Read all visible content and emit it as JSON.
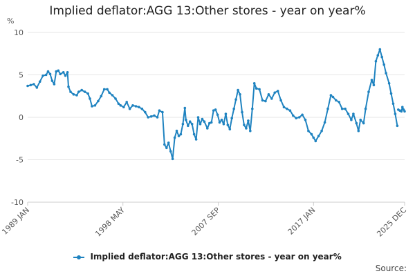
{
  "chart_data": {
    "type": "line",
    "title": "Implied deflator:AGG 13:Other stores - year on year%",
    "ylabel": "%",
    "ylim": [
      -10,
      10
    ],
    "yticks": [
      10,
      5,
      0,
      -5,
      -10
    ],
    "xticks": [
      {
        "label": "1989 JAN",
        "t": 1989.0
      },
      {
        "label": "1998 MAY",
        "t": 1998.33
      },
      {
        "label": "2007 SEP",
        "t": 2007.67
      },
      {
        "label": "2017 JAN",
        "t": 2017.0
      },
      {
        "label": "2025 DEC",
        "t": 2025.92
      }
    ],
    "xrange": [
      1989.0,
      2025.92
    ],
    "grid": true,
    "legend_position": "bottom",
    "series": [
      {
        "name": "Implied deflator:AGG 13:Other stores - year on year%",
        "color": "#1f83c0",
        "points": [
          [
            1989.0,
            3.7
          ],
          [
            1989.3,
            3.8
          ],
          [
            1989.6,
            3.9
          ],
          [
            1989.9,
            3.5
          ],
          [
            1990.2,
            4.2
          ],
          [
            1990.5,
            4.9
          ],
          [
            1990.8,
            5.0
          ],
          [
            1991.0,
            5.4
          ],
          [
            1991.2,
            5.1
          ],
          [
            1991.4,
            4.3
          ],
          [
            1991.6,
            3.9
          ],
          [
            1991.8,
            5.4
          ],
          [
            1992.0,
            5.5
          ],
          [
            1992.2,
            5.1
          ],
          [
            1992.5,
            5.3
          ],
          [
            1992.7,
            4.9
          ],
          [
            1992.9,
            5.3
          ],
          [
            1993.0,
            3.6
          ],
          [
            1993.2,
            3.0
          ],
          [
            1993.5,
            2.7
          ],
          [
            1993.8,
            2.6
          ],
          [
            1994.0,
            3.0
          ],
          [
            1994.3,
            3.2
          ],
          [
            1994.6,
            3.0
          ],
          [
            1994.9,
            2.8
          ],
          [
            1995.1,
            2.2
          ],
          [
            1995.3,
            1.3
          ],
          [
            1995.6,
            1.4
          ],
          [
            1995.9,
            1.9
          ],
          [
            1996.2,
            2.5
          ],
          [
            1996.5,
            3.3
          ],
          [
            1996.8,
            3.3
          ],
          [
            1997.0,
            2.9
          ],
          [
            1997.3,
            2.6
          ],
          [
            1997.6,
            2.2
          ],
          [
            1997.9,
            1.6
          ],
          [
            1998.1,
            1.4
          ],
          [
            1998.4,
            1.2
          ],
          [
            1998.7,
            1.8
          ],
          [
            1999.0,
            1.0
          ],
          [
            1999.3,
            1.4
          ],
          [
            1999.6,
            1.3
          ],
          [
            1999.9,
            1.2
          ],
          [
            2000.2,
            1.0
          ],
          [
            2000.5,
            0.6
          ],
          [
            2000.8,
            0.0
          ],
          [
            2001.1,
            0.1
          ],
          [
            2001.4,
            0.2
          ],
          [
            2001.7,
            0.0
          ],
          [
            2001.9,
            0.8
          ],
          [
            2002.2,
            0.6
          ],
          [
            2002.4,
            -3.2
          ],
          [
            2002.6,
            -3.6
          ],
          [
            2002.8,
            -3.0
          ],
          [
            2003.0,
            -4.0
          ],
          [
            2003.2,
            -4.9
          ],
          [
            2003.4,
            -2.4
          ],
          [
            2003.6,
            -1.6
          ],
          [
            2003.8,
            -2.2
          ],
          [
            2004.0,
            -2.0
          ],
          [
            2004.2,
            -0.8
          ],
          [
            2004.4,
            1.1
          ],
          [
            2004.5,
            -0.3
          ],
          [
            2004.7,
            -1.0
          ],
          [
            2004.9,
            -0.5
          ],
          [
            2005.1,
            -0.8
          ],
          [
            2005.3,
            -2.0
          ],
          [
            2005.5,
            -2.6
          ],
          [
            2005.7,
            0.0
          ],
          [
            2005.9,
            -0.8
          ],
          [
            2006.1,
            -0.2
          ],
          [
            2006.3,
            -0.5
          ],
          [
            2006.6,
            -1.3
          ],
          [
            2006.8,
            -0.7
          ],
          [
            2007.0,
            -0.6
          ],
          [
            2007.2,
            0.8
          ],
          [
            2007.4,
            0.9
          ],
          [
            2007.6,
            0.3
          ],
          [
            2007.8,
            -0.6
          ],
          [
            2008.0,
            -0.3
          ],
          [
            2008.2,
            -0.8
          ],
          [
            2008.4,
            0.4
          ],
          [
            2008.6,
            -0.9
          ],
          [
            2008.8,
            -1.4
          ],
          [
            2009.0,
            -0.1
          ],
          [
            2009.2,
            1.0
          ],
          [
            2009.4,
            2.1
          ],
          [
            2009.6,
            3.2
          ],
          [
            2009.8,
            2.7
          ],
          [
            2010.0,
            0.6
          ],
          [
            2010.2,
            -0.9
          ],
          [
            2010.4,
            -1.3
          ],
          [
            2010.6,
            -0.4
          ],
          [
            2010.8,
            -1.6
          ],
          [
            2011.0,
            1.0
          ],
          [
            2011.2,
            4.0
          ],
          [
            2011.4,
            3.4
          ],
          [
            2011.7,
            3.3
          ],
          [
            2012.0,
            2.0
          ],
          [
            2012.3,
            1.9
          ],
          [
            2012.6,
            2.7
          ],
          [
            2012.9,
            2.2
          ],
          [
            2013.2,
            2.9
          ],
          [
            2013.5,
            3.1
          ],
          [
            2013.8,
            2.0
          ],
          [
            2014.1,
            1.2
          ],
          [
            2014.4,
            1.0
          ],
          [
            2014.7,
            0.8
          ],
          [
            2015.0,
            0.2
          ],
          [
            2015.3,
            -0.1
          ],
          [
            2015.6,
            0.0
          ],
          [
            2015.9,
            0.3
          ],
          [
            2016.2,
            -0.3
          ],
          [
            2016.5,
            -1.6
          ],
          [
            2016.8,
            -2.0
          ],
          [
            2017.0,
            -2.4
          ],
          [
            2017.2,
            -2.8
          ],
          [
            2017.5,
            -2.2
          ],
          [
            2017.8,
            -1.6
          ],
          [
            2018.1,
            -0.6
          ],
          [
            2018.4,
            1.0
          ],
          [
            2018.7,
            2.6
          ],
          [
            2018.9,
            2.4
          ],
          [
            2019.2,
            2.0
          ],
          [
            2019.5,
            1.8
          ],
          [
            2019.8,
            1.0
          ],
          [
            2020.1,
            1.0
          ],
          [
            2020.4,
            0.4
          ],
          [
            2020.7,
            -0.3
          ],
          [
            2020.9,
            0.4
          ],
          [
            2021.2,
            -0.7
          ],
          [
            2021.4,
            -1.6
          ],
          [
            2021.6,
            -0.3
          ],
          [
            2021.9,
            -0.7
          ],
          [
            2022.1,
            1.0
          ],
          [
            2022.4,
            3.0
          ],
          [
            2022.7,
            4.4
          ],
          [
            2022.9,
            3.8
          ],
          [
            2023.1,
            6.6
          ],
          [
            2023.3,
            7.3
          ],
          [
            2023.5,
            8.0
          ],
          [
            2023.7,
            7.1
          ],
          [
            2023.9,
            6.2
          ],
          [
            2024.1,
            5.2
          ],
          [
            2024.4,
            4.0
          ],
          [
            2024.6,
            2.8
          ],
          [
            2024.8,
            1.6
          ],
          [
            2025.0,
            0.4
          ],
          [
            2025.2,
            -1.0
          ],
          [
            null,
            null
          ]
        ]
      },
      {
        "name": "Implied deflator:AGG 13:Other stores - year on year%",
        "color": "#1f83c0",
        "points": [
          [
            2025.3,
            0.9
          ],
          [
            2025.45,
            0.8
          ],
          [
            2025.6,
            0.7
          ],
          [
            2025.7,
            1.2
          ],
          [
            2025.82,
            0.9
          ],
          [
            2025.92,
            0.7
          ]
        ]
      }
    ]
  },
  "legend": {
    "label": "Implied deflator:AGG 13:Other stores - year on year%"
  },
  "source": {
    "label": "Source:"
  }
}
